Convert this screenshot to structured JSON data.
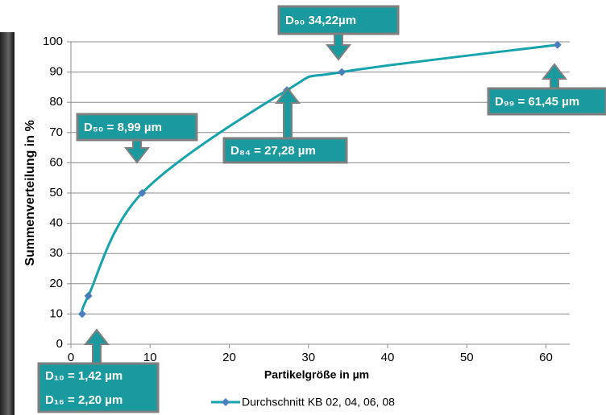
{
  "chart_data": {
    "type": "line",
    "x_label": "Partikelgröße in µm",
    "y_label": "Summenverteilung in %",
    "x": [
      1.42,
      2.2,
      8.99,
      27.28,
      34.22,
      61.45
    ],
    "series": [
      {
        "name": "Durchschnitt KB 02, 04, 06, 08",
        "color": "#17a3ad",
        "marker_color": "#4a7ebb",
        "values": [
          10,
          16,
          50,
          84,
          90,
          99
        ]
      }
    ],
    "xlim": [
      0,
      63
    ],
    "xticks": [
      0,
      10,
      20,
      30,
      40,
      50,
      60
    ],
    "ylim": [
      0,
      100
    ],
    "yticks": [
      0,
      10,
      20,
      30,
      40,
      50,
      60,
      70,
      80,
      90,
      100
    ],
    "grid": true,
    "legend": "bottom",
    "annotations": [
      {
        "lines": [
          "D₉₀ 34,22µm"
        ]
      },
      {
        "lines": [
          "D₉₉ = 61,45 µm"
        ]
      },
      {
        "lines": [
          "D₅₀ = 8,99 µm"
        ]
      },
      {
        "lines": [
          "D₈₄ = 27,28 µm"
        ]
      },
      {
        "lines": [
          "D₁₀ = 1,42 µm",
          "D₁₆ = 2,20 µm"
        ]
      }
    ]
  }
}
